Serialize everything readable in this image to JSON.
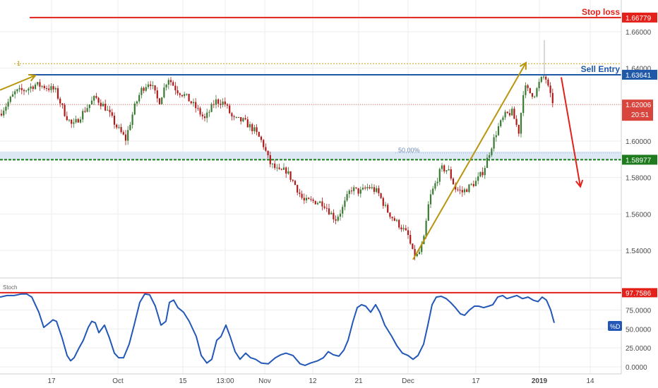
{
  "colors": {
    "up": "#3a7a33",
    "down": "#b01919",
    "red": "#e3211a",
    "blue": "#1f58a8",
    "green": "#1d7a1d",
    "gold": "#b8960c",
    "stoch": "#2257b8",
    "axis_text": "#4a4a4a",
    "grid": "#eeeeee",
    "zone": "#dde8f5"
  },
  "chart_data": [
    {
      "type": "candlestick",
      "ylim": [
        1.53,
        1.675
      ],
      "y_ticks": [
        "1.66000",
        "1.64000",
        "1.62000",
        "1.60000",
        "1.58000",
        "1.56000",
        "1.54000"
      ],
      "x_tick_labels": [
        "17",
        "Oct",
        "15",
        "13:00",
        "Nov",
        "12",
        "21",
        "Dec",
        "17",
        "2019",
        "14"
      ],
      "levels": {
        "stop_loss": {
          "label": "Stop loss",
          "price": 1.66779,
          "price_label": "1.66779"
        },
        "sell_entry": {
          "label": "Sell Entry",
          "price": 1.63641,
          "price_label": "1.63641"
        },
        "support": {
          "price": 1.58977,
          "price_label": "1.58977"
        },
        "current": {
          "price": 1.62006,
          "price_label": "1.62006",
          "timer": "20:51"
        },
        "fib_100": {
          "label": "1",
          "price": 1.6425
        },
        "fib_50": {
          "label": "50.00%",
          "price": 1.5935
        }
      },
      "anchors": [
        [
          0,
          1.615
        ],
        [
          22,
          1.627
        ],
        [
          35,
          1.628
        ],
        [
          50,
          1.631
        ],
        [
          62,
          1.63
        ],
        [
          78,
          1.628
        ],
        [
          92,
          1.615
        ],
        [
          103,
          1.608
        ],
        [
          118,
          1.616
        ],
        [
          135,
          1.624
        ],
        [
          150,
          1.618
        ],
        [
          165,
          1.608
        ],
        [
          178,
          1.601
        ],
        [
          190,
          1.618
        ],
        [
          200,
          1.628
        ],
        [
          212,
          1.633
        ],
        [
          225,
          1.621
        ],
        [
          238,
          1.635
        ],
        [
          250,
          1.628
        ],
        [
          262,
          1.625
        ],
        [
          278,
          1.618
        ],
        [
          290,
          1.612
        ],
        [
          305,
          1.622
        ],
        [
          318,
          1.621
        ],
        [
          330,
          1.612
        ],
        [
          345,
          1.611
        ],
        [
          360,
          1.606
        ],
        [
          372,
          1.599
        ],
        [
          382,
          1.588
        ],
        [
          395,
          1.583
        ],
        [
          405,
          1.584
        ],
        [
          418,
          1.576
        ],
        [
          430,
          1.567
        ],
        [
          445,
          1.567
        ],
        [
          458,
          1.566
        ],
        [
          475,
          1.557
        ],
        [
          485,
          1.563
        ],
        [
          497,
          1.574
        ],
        [
          510,
          1.572
        ],
        [
          522,
          1.575
        ],
        [
          535,
          1.572
        ],
        [
          548,
          1.562
        ],
        [
          558,
          1.557
        ],
        [
          568,
          1.553
        ],
        [
          578,
          1.548
        ],
        [
          585,
          1.538
        ],
        [
          592,
          1.537
        ],
        [
          600,
          1.545
        ],
        [
          608,
          1.568
        ],
        [
          615,
          1.575
        ],
        [
          625,
          1.585
        ],
        [
          635,
          1.584
        ],
        [
          645,
          1.574
        ],
        [
          655,
          1.572
        ],
        [
          665,
          1.575
        ],
        [
          675,
          1.578
        ],
        [
          685,
          1.584
        ],
        [
          695,
          1.596
        ],
        [
          705,
          1.607
        ],
        [
          715,
          1.614
        ],
        [
          725,
          1.616
        ],
        [
          735,
          1.605
        ],
        [
          742,
          1.63
        ],
        [
          752,
          1.626
        ],
        [
          758,
          1.626
        ],
        [
          765,
          1.633
        ],
        [
          772,
          1.636
        ],
        [
          779,
          1.625
        ],
        [
          785,
          1.62
        ]
      ],
      "spike": {
        "x": 771,
        "high": 1.6554
      },
      "arrows": [
        {
          "from": [
            0,
            1.628
          ],
          "to": [
            50,
            1.636
          ],
          "color": "gold"
        },
        {
          "from": [
            585,
            1.535
          ],
          "to": [
            745,
            1.643
          ],
          "color": "gold"
        },
        {
          "from": [
            795,
            1.635
          ],
          "to": [
            822,
            1.575
          ],
          "color": "red"
        }
      ]
    },
    {
      "type": "line",
      "name": "Stoch",
      "ylim": [
        0,
        100
      ],
      "y_ticks": [
        "75.0000",
        "50.0000",
        "25.0000",
        "0.0000"
      ],
      "overbought_label": "97.7586",
      "legend_badge": "%D",
      "series": [
        {
          "values": [
            [
              0,
              92
            ],
            [
              10,
              94
            ],
            [
              20,
              94
            ],
            [
              30,
              96
            ],
            [
              38,
              96
            ],
            [
              45,
              92
            ],
            [
              55,
              72
            ],
            [
              62,
              52
            ],
            [
              70,
              58
            ],
            [
              75,
              62
            ],
            [
              80,
              60
            ],
            [
              88,
              38
            ],
            [
              95,
              15
            ],
            [
              100,
              8
            ],
            [
              105,
              12
            ],
            [
              112,
              25
            ],
            [
              118,
              35
            ],
            [
              125,
              52
            ],
            [
              130,
              60
            ],
            [
              135,
              58
            ],
            [
              140,
              45
            ],
            [
              148,
              55
            ],
            [
              155,
              38
            ],
            [
              162,
              18
            ],
            [
              168,
              12
            ],
            [
              175,
              12
            ],
            [
              183,
              30
            ],
            [
              190,
              55
            ],
            [
              198,
              85
            ],
            [
              205,
              96
            ],
            [
              212,
              95
            ],
            [
              220,
              80
            ],
            [
              228,
              55
            ],
            [
              235,
              60
            ],
            [
              240,
              85
            ],
            [
              246,
              88
            ],
            [
              252,
              78
            ],
            [
              260,
              72
            ],
            [
              268,
              60
            ],
            [
              278,
              40
            ],
            [
              285,
              15
            ],
            [
              293,
              5
            ],
            [
              300,
              10
            ],
            [
              307,
              35
            ],
            [
              313,
              40
            ],
            [
              320,
              55
            ],
            [
              326,
              40
            ],
            [
              333,
              20
            ],
            [
              340,
              10
            ],
            [
              348,
              18
            ],
            [
              355,
              12
            ],
            [
              362,
              10
            ],
            [
              370,
              5
            ],
            [
              380,
              4
            ],
            [
              390,
              12
            ],
            [
              398,
              16
            ],
            [
              405,
              18
            ],
            [
              415,
              15
            ],
            [
              425,
              4
            ],
            [
              432,
              2
            ],
            [
              440,
              5
            ],
            [
              450,
              8
            ],
            [
              458,
              12
            ],
            [
              465,
              20
            ],
            [
              472,
              16
            ],
            [
              480,
              14
            ],
            [
              487,
              22
            ],
            [
              493,
              35
            ],
            [
              500,
              60
            ],
            [
              506,
              78
            ],
            [
              512,
              82
            ],
            [
              518,
              80
            ],
            [
              525,
              72
            ],
            [
              532,
              82
            ],
            [
              538,
              72
            ],
            [
              545,
              55
            ],
            [
              555,
              40
            ],
            [
              562,
              28
            ],
            [
              570,
              18
            ],
            [
              578,
              15
            ],
            [
              585,
              10
            ],
            [
              592,
              15
            ],
            [
              600,
              30
            ],
            [
              606,
              55
            ],
            [
              612,
              82
            ],
            [
              618,
              92
            ],
            [
              625,
              93
            ],
            [
              632,
              90
            ],
            [
              638,
              85
            ],
            [
              645,
              78
            ],
            [
              652,
              70
            ],
            [
              658,
              68
            ],
            [
              665,
              75
            ],
            [
              672,
              80
            ],
            [
              678,
              80
            ],
            [
              685,
              78
            ],
            [
              692,
              80
            ],
            [
              698,
              82
            ],
            [
              705,
              92
            ],
            [
              712,
              94
            ],
            [
              718,
              90
            ],
            [
              725,
              92
            ],
            [
              732,
              94
            ],
            [
              740,
              90
            ],
            [
              748,
              92
            ],
            [
              755,
              88
            ],
            [
              762,
              86
            ],
            [
              768,
              92
            ],
            [
              774,
              88
            ],
            [
              780,
              75
            ],
            [
              785,
              58
            ]
          ]
        }
      ]
    }
  ]
}
